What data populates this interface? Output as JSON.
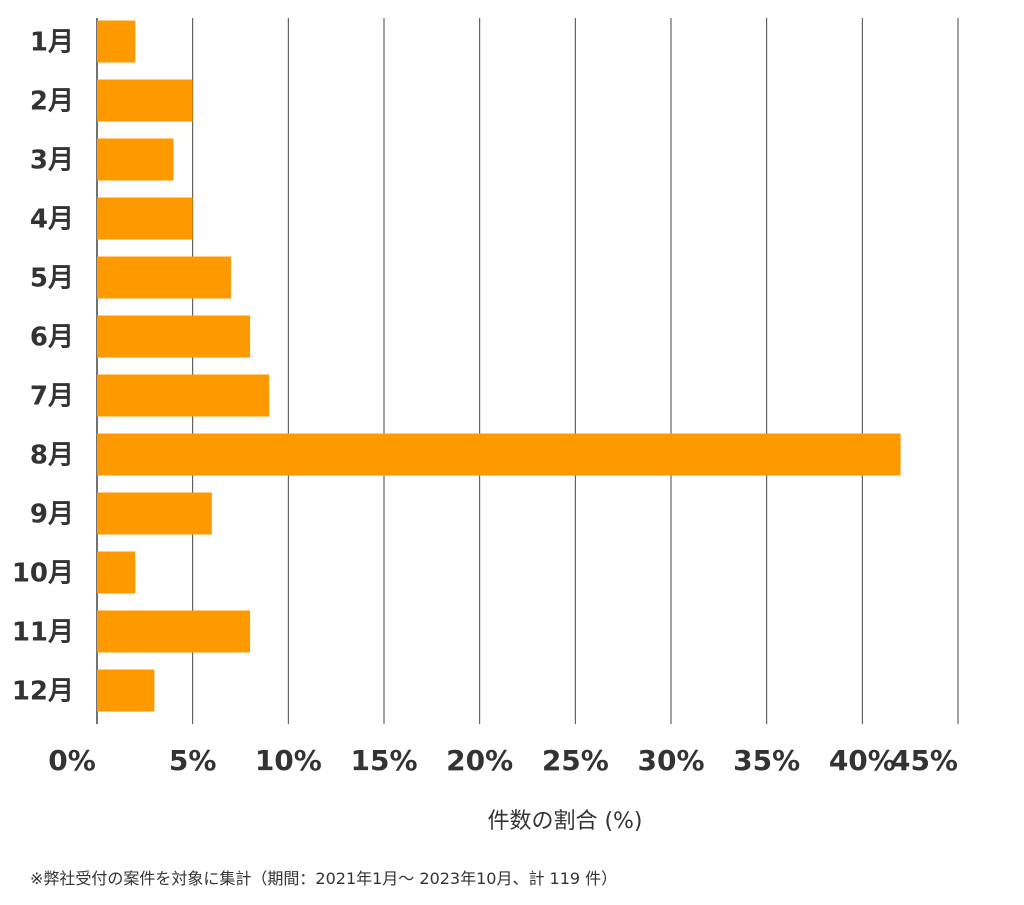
{
  "chart_data": {
    "type": "bar",
    "orientation": "horizontal",
    "categories": [
      "1月",
      "2月",
      "3月",
      "4月",
      "5月",
      "6月",
      "7月",
      "8月",
      "9月",
      "10月",
      "11月",
      "12月"
    ],
    "values": [
      2.0,
      5.0,
      4.0,
      5.0,
      7.0,
      8.0,
      9.0,
      42.0,
      6.0,
      2.0,
      8.0,
      3.0
    ],
    "xlim": [
      0,
      45
    ],
    "x_ticks": [
      "0%",
      "5%",
      "10%",
      "15%",
      "20%",
      "25%",
      "30%",
      "35%",
      "40%",
      "45%"
    ],
    "xlabel": "件数の割合 (%)",
    "ylabel": "",
    "grid": true,
    "bar_color": "#FF9900",
    "gridline_color": "#444444"
  },
  "footnote": "※弊社受付の案件を対象に集計（期間：2021年1月～ 2023年10月、計 119 件）"
}
